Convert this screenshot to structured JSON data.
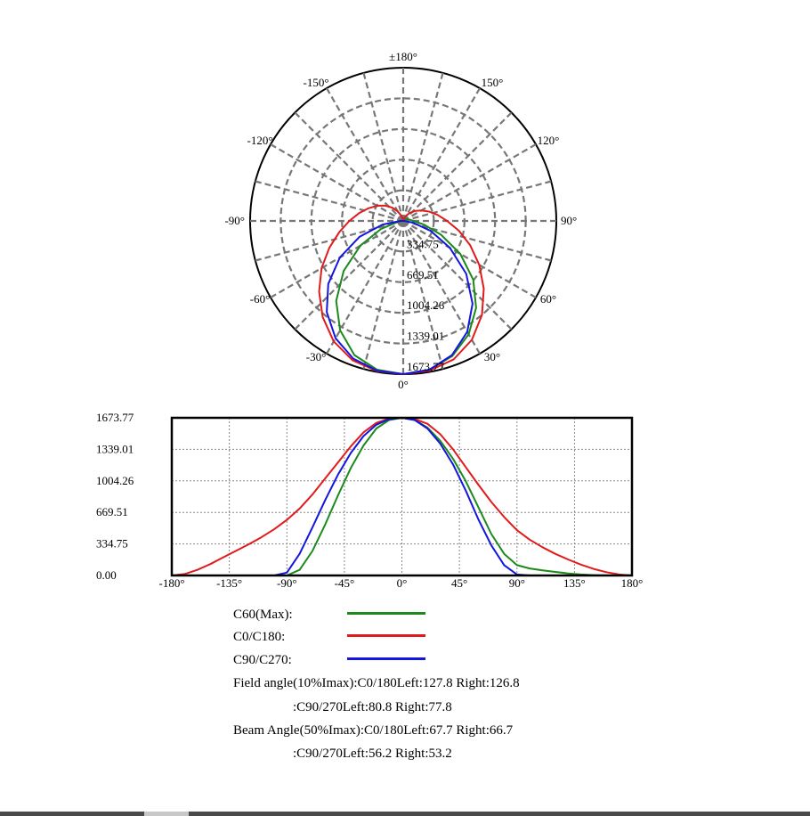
{
  "chart_data": [
    {
      "type": "polar",
      "angle_labels": [
        {
          "text": "±180°",
          "angle": 180
        },
        {
          "text": "150°",
          "angle": 150
        },
        {
          "text": "120°",
          "angle": 120
        },
        {
          "text": "90°",
          "angle": 90
        },
        {
          "text": "60°",
          "angle": 60
        },
        {
          "text": "30°",
          "angle": 30
        },
        {
          "text": "0°",
          "angle": 0
        },
        {
          "text": "-30°",
          "angle": -30
        },
        {
          "text": "-60°",
          "angle": -60
        },
        {
          "text": "-90°",
          "angle": -90
        },
        {
          "text": "-120°",
          "angle": -120
        },
        {
          "text": "-150°",
          "angle": -150
        }
      ],
      "radial_labels": [
        "334.75",
        "669.51",
        "1004.26",
        "1339.01",
        "1673.77"
      ],
      "radial_max": 1673.77,
      "series": [
        {
          "name": "C60(Max)",
          "color": "#1a8a1a",
          "angles": [
            -180,
            -170,
            -160,
            -150,
            -140,
            -130,
            -120,
            -110,
            -100,
            -90,
            -80,
            -70,
            -60,
            -50,
            -40,
            -30,
            -20,
            -10,
            0,
            10,
            20,
            30,
            40,
            50,
            60,
            70,
            80,
            90,
            100,
            110,
            120,
            130,
            140,
            150,
            160,
            170,
            180
          ],
          "values": [
            0,
            0,
            0,
            0,
            0,
            0,
            0,
            0,
            0,
            0,
            60,
            260,
            540,
            850,
            1140,
            1380,
            1560,
            1650,
            1673.77,
            1650,
            1570,
            1430,
            1240,
            1000,
            720,
            440,
            230,
            110,
            75,
            55,
            38,
            22,
            10,
            4,
            1,
            0,
            0
          ]
        },
        {
          "name": "C0/C180",
          "color": "#e01b1b",
          "angles": [
            -180,
            -170,
            -160,
            -150,
            -140,
            -130,
            -120,
            -110,
            -100,
            -90,
            -80,
            -70,
            -60,
            -50,
            -40,
            -30,
            -20,
            -10,
            0,
            10,
            20,
            30,
            40,
            50,
            60,
            70,
            80,
            90,
            100,
            110,
            120,
            130,
            140,
            150,
            160,
            170,
            180
          ],
          "values": [
            0,
            15,
            60,
            120,
            190,
            260,
            330,
            405,
            490,
            590,
            710,
            860,
            1030,
            1200,
            1370,
            1520,
            1620,
            1665,
            1673.77,
            1660,
            1610,
            1500,
            1340,
            1150,
            960,
            780,
            620,
            480,
            380,
            300,
            230,
            170,
            115,
            70,
            35,
            10,
            0
          ]
        },
        {
          "name": "C90/C270",
          "color": "#1515e0",
          "angles": [
            -180,
            -170,
            -160,
            -150,
            -140,
            -130,
            -120,
            -110,
            -100,
            -90,
            -80,
            -70,
            -60,
            -50,
            -40,
            -30,
            -20,
            -10,
            0,
            10,
            20,
            30,
            40,
            50,
            60,
            70,
            80,
            90,
            100,
            110,
            120,
            130,
            140,
            150,
            160,
            170,
            180
          ],
          "values": [
            0,
            0,
            0,
            0,
            0,
            0,
            0,
            0,
            0,
            30,
            230,
            510,
            800,
            1070,
            1300,
            1480,
            1600,
            1660,
            1673.77,
            1650,
            1560,
            1400,
            1180,
            900,
            590,
            320,
            110,
            10,
            0,
            0,
            0,
            0,
            0,
            0,
            0,
            0,
            0
          ]
        }
      ]
    },
    {
      "type": "line",
      "x_tick_labels": [
        "-180°",
        "-135°",
        "-90°",
        "-45°",
        "0°",
        "45°",
        "90°",
        "135°",
        "180°"
      ],
      "x_ticks": [
        -180,
        -135,
        -90,
        -45,
        0,
        45,
        90,
        135,
        180
      ],
      "y_tick_labels": [
        "0.00",
        "334.75",
        "669.51",
        "1004.26",
        "1339.01",
        "1673.77"
      ],
      "y_ticks": [
        0,
        334.75,
        669.51,
        1004.26,
        1339.01,
        1673.77
      ],
      "xlim": [
        -180,
        180
      ],
      "ylim": [
        0,
        1673.77
      ],
      "grid": true,
      "series": [
        {
          "name": "C60(Max)",
          "color": "#1a8a1a",
          "x": [
            -180,
            -170,
            -160,
            -150,
            -140,
            -130,
            -120,
            -110,
            -100,
            -90,
            -80,
            -70,
            -60,
            -50,
            -40,
            -30,
            -20,
            -10,
            0,
            10,
            20,
            30,
            40,
            50,
            60,
            70,
            80,
            90,
            100,
            110,
            120,
            130,
            140,
            150,
            160,
            170,
            180
          ],
          "y": [
            0,
            0,
            0,
            0,
            0,
            0,
            0,
            0,
            0,
            0,
            60,
            260,
            540,
            850,
            1140,
            1380,
            1560,
            1650,
            1673.77,
            1650,
            1570,
            1430,
            1240,
            1000,
            720,
            440,
            230,
            110,
            75,
            55,
            38,
            22,
            10,
            4,
            1,
            0,
            0
          ]
        },
        {
          "name": "C0/C180",
          "color": "#e01b1b",
          "x": [
            -180,
            -170,
            -160,
            -150,
            -140,
            -130,
            -120,
            -110,
            -100,
            -90,
            -80,
            -70,
            -60,
            -50,
            -40,
            -30,
            -20,
            -10,
            0,
            10,
            20,
            30,
            40,
            50,
            60,
            70,
            80,
            90,
            100,
            110,
            120,
            130,
            140,
            150,
            160,
            170,
            180
          ],
          "y": [
            0,
            15,
            60,
            120,
            190,
            260,
            330,
            405,
            490,
            590,
            710,
            860,
            1030,
            1200,
            1370,
            1520,
            1620,
            1665,
            1673.77,
            1660,
            1610,
            1500,
            1340,
            1150,
            960,
            780,
            620,
            480,
            380,
            300,
            230,
            170,
            115,
            70,
            35,
            10,
            0
          ]
        },
        {
          "name": "C90/C270",
          "color": "#1515e0",
          "x": [
            -180,
            -170,
            -160,
            -150,
            -140,
            -130,
            -120,
            -110,
            -100,
            -90,
            -80,
            -70,
            -60,
            -50,
            -40,
            -30,
            -20,
            -10,
            0,
            10,
            20,
            30,
            40,
            50,
            60,
            70,
            80,
            90,
            100,
            110,
            120,
            130,
            140,
            150,
            160,
            170,
            180
          ],
          "y": [
            0,
            0,
            0,
            0,
            0,
            0,
            0,
            0,
            0,
            30,
            230,
            510,
            800,
            1070,
            1300,
            1480,
            1600,
            1660,
            1673.77,
            1650,
            1560,
            1400,
            1180,
            900,
            590,
            320,
            110,
            10,
            0,
            0,
            0,
            0,
            0,
            0,
            0,
            0,
            0
          ]
        }
      ]
    }
  ],
  "legend": {
    "items": [
      {
        "label": "C60(Max):",
        "color": "#1a8a1a"
      },
      {
        "label": "C0/C180:",
        "color": "#e01b1b"
      },
      {
        "label": "C90/C270:",
        "color": "#1515e0"
      }
    ]
  },
  "info": {
    "field_line1": "Field angle(10%Imax):C0/180Left:127.8 Right:126.8",
    "field_line2": ":C90/270Left:80.8 Right:77.8",
    "beam_line1": "Beam Angle(50%Imax):C0/180Left:67.7 Right:66.7",
    "beam_line2": ":C90/270Left:56.2 Right:53.2"
  }
}
